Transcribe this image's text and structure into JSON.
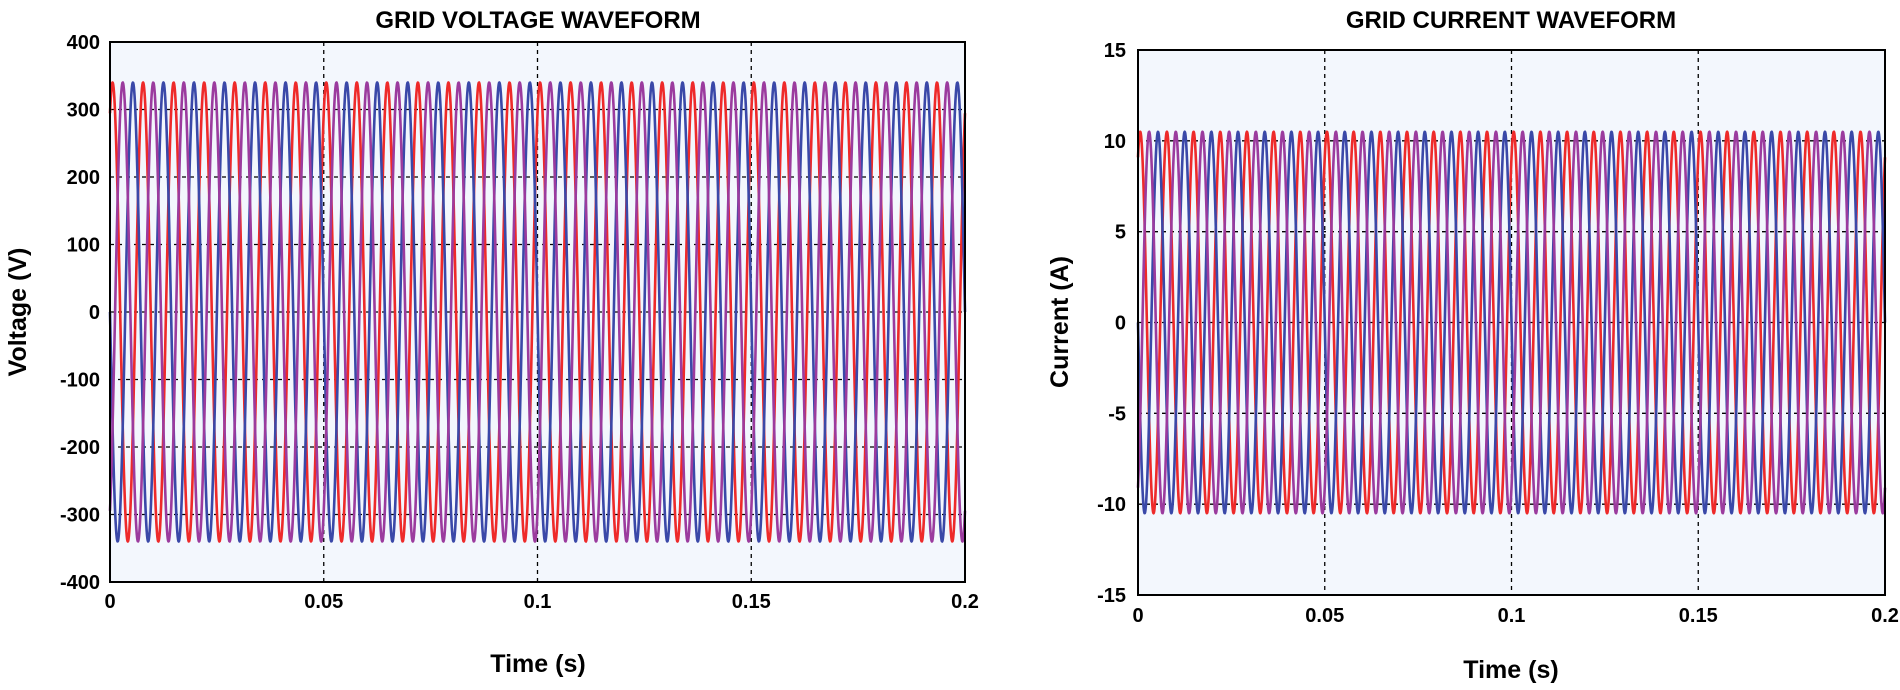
{
  "chart_data": [
    {
      "type": "line",
      "title": "GRID VOLTAGE WAVEFORM",
      "xlabel": "Time (s)",
      "ylabel": "Voltage (V)",
      "xlim": [
        0,
        0.2
      ],
      "ylim": [
        -400,
        400
      ],
      "xticks": [
        0,
        0.05,
        0.1,
        0.15,
        0.2
      ],
      "xtick_labels": [
        "0",
        "0.05",
        "0.1",
        "0.15",
        "0.2"
      ],
      "yticks": [
        400,
        300,
        200,
        100,
        0,
        -100,
        -200,
        -300,
        -400
      ],
      "ytick_labels": [
        "400",
        "300",
        "200",
        "100",
        "0",
        "-100",
        "-200",
        "-300",
        "-400"
      ],
      "grid": true,
      "frequency_hz": 140,
      "series": [
        {
          "amplitude": 340,
          "phase_deg": 60,
          "color": "#ee2a2a"
        },
        {
          "amplitude": 340,
          "phase_deg": 180,
          "color": "#3a48a8"
        },
        {
          "amplitude": 340,
          "phase_deg": -60,
          "color": "#9b3b9e"
        }
      ]
    },
    {
      "type": "line",
      "title": "GRID CURRENT WAVEFORM",
      "xlabel": "Time (s)",
      "ylabel": "Current (A)",
      "xlim": [
        0,
        0.2
      ],
      "ylim": [
        -15,
        15
      ],
      "xticks": [
        0,
        0.05,
        0.1,
        0.15,
        0.2
      ],
      "xtick_labels": [
        "0",
        "0.05",
        "0.1",
        "0.15",
        "0.2"
      ],
      "yticks": [
        15,
        10,
        5,
        0,
        -5,
        -10,
        -15
      ],
      "ytick_labels": [
        "15",
        "10",
        "5",
        "0",
        "-5",
        "-10",
        "-15"
      ],
      "grid": true,
      "frequency_hz": 140,
      "series": [
        {
          "amplitude": 10.5,
          "phase_deg": 60,
          "color": "#ee2a2a"
        },
        {
          "amplitude": 10.5,
          "phase_deg": 180,
          "color": "#3a48a8"
        },
        {
          "amplitude": 10.5,
          "phase_deg": -60,
          "color": "#9b3b9e"
        }
      ]
    }
  ]
}
